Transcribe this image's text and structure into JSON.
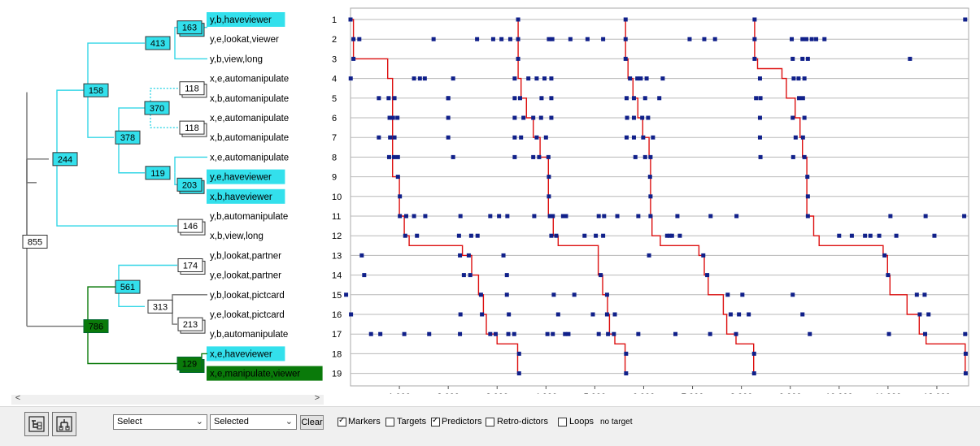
{
  "tree": {
    "leaves": [
      {
        "label": "y,b,haveviewer",
        "highlight": "cyan"
      },
      {
        "label": "y,e,lookat,viewer",
        "highlight": ""
      },
      {
        "label": "y,b,view,long",
        "highlight": ""
      },
      {
        "label": "x,e,automanipulate",
        "highlight": ""
      },
      {
        "label": "x,b,automanipulate",
        "highlight": ""
      },
      {
        "label": "x,e,automanipulate",
        "highlight": ""
      },
      {
        "label": "x,b,automanipulate",
        "highlight": ""
      },
      {
        "label": "x,e,automanipulate",
        "highlight": ""
      },
      {
        "label": "y,e,haveviewer",
        "highlight": "cyan"
      },
      {
        "label": "x,b,haveviewer",
        "highlight": "cyan"
      },
      {
        "label": "y,b,automanipulate",
        "highlight": ""
      },
      {
        "label": "x,b,view,long",
        "highlight": ""
      },
      {
        "label": "y,b,lookat,partner",
        "highlight": ""
      },
      {
        "label": "y,e,lookat,partner",
        "highlight": ""
      },
      {
        "label": "y,b,lookat,pictcard",
        "highlight": ""
      },
      {
        "label": "y,e,lookat,pictcard",
        "highlight": ""
      },
      {
        "label": "y,b,automanipulate",
        "highlight": ""
      },
      {
        "label": "x,e,haveviewer",
        "highlight": "cyan"
      },
      {
        "label": "x,e,manipulate,viewer",
        "highlight": "green"
      }
    ],
    "nodes": [
      {
        "id": "n163",
        "label": "163",
        "style": "cyan"
      },
      {
        "id": "n413",
        "label": "413",
        "style": "cyan"
      },
      {
        "id": "n158",
        "label": "158",
        "style": "cyan"
      },
      {
        "id": "n118a",
        "label": "118",
        "style": "white"
      },
      {
        "id": "n370",
        "label": "370",
        "style": "cyan"
      },
      {
        "id": "n118b",
        "label": "118",
        "style": "white"
      },
      {
        "id": "n378",
        "label": "378",
        "style": "cyan"
      },
      {
        "id": "n119",
        "label": "119",
        "style": "cyan"
      },
      {
        "id": "n203",
        "label": "203",
        "style": "cyan"
      },
      {
        "id": "n244",
        "label": "244",
        "style": "cyan"
      },
      {
        "id": "n146",
        "label": "146",
        "style": "white"
      },
      {
        "id": "n855",
        "label": "855",
        "style": "white"
      },
      {
        "id": "n174",
        "label": "174",
        "style": "white"
      },
      {
        "id": "n561",
        "label": "561",
        "style": "cyan"
      },
      {
        "id": "n313",
        "label": "313",
        "style": "white"
      },
      {
        "id": "n213",
        "label": "213",
        "style": "white"
      },
      {
        "id": "n786",
        "label": "786",
        "style": "green"
      },
      {
        "id": "n129",
        "label": "129",
        "style": "green"
      }
    ],
    "colors": {
      "cyan": "#33e0ec",
      "cyan_line": "#33d6e6",
      "green": "#0a7a0a",
      "gray_line": "#707070"
    }
  },
  "chart_data": {
    "type": "scatter",
    "rows": [
      "1",
      "2",
      "3",
      "4",
      "5",
      "6",
      "7",
      "8",
      "9",
      "10",
      "11",
      "12",
      "13",
      "14",
      "15",
      "16",
      "17",
      "18",
      "19"
    ],
    "xlim": [
      0,
      12650
    ],
    "x_ticks": [
      1000,
      2000,
      3000,
      4000,
      5000,
      6000,
      7000,
      8000,
      9000,
      10000,
      11000,
      12000
    ],
    "x_tick_labels": [
      "1,000",
      "2,000",
      "3,000",
      "4,000",
      "5,000",
      "6,000",
      "7,000",
      "8,000",
      "9,000",
      "10,000",
      "11,000",
      "12,000"
    ],
    "points": [
      [
        0,
        1
      ],
      [
        3430,
        1
      ],
      [
        5630,
        1
      ],
      [
        8270,
        1
      ],
      [
        12580,
        1
      ],
      [
        60,
        2
      ],
      [
        180,
        2
      ],
      [
        1700,
        2
      ],
      [
        2590,
        2
      ],
      [
        2920,
        2
      ],
      [
        3090,
        2
      ],
      [
        3270,
        2
      ],
      [
        3430,
        2
      ],
      [
        4060,
        2
      ],
      [
        4130,
        2
      ],
      [
        4500,
        2
      ],
      [
        4850,
        2
      ],
      [
        5170,
        2
      ],
      [
        5630,
        2
      ],
      [
        6940,
        2
      ],
      [
        7240,
        2
      ],
      [
        7460,
        2
      ],
      [
        8270,
        2
      ],
      [
        9030,
        2
      ],
      [
        9250,
        2
      ],
      [
        9330,
        2
      ],
      [
        9440,
        2
      ],
      [
        9530,
        2
      ],
      [
        9700,
        2
      ],
      [
        60,
        3
      ],
      [
        3430,
        3
      ],
      [
        5630,
        3
      ],
      [
        8270,
        3
      ],
      [
        9050,
        3
      ],
      [
        9250,
        3
      ],
      [
        9360,
        3
      ],
      [
        11450,
        3
      ],
      [
        4,
        4
      ],
      [
        1300,
        4
      ],
      [
        1420,
        4
      ],
      [
        1520,
        4
      ],
      [
        2100,
        4
      ],
      [
        3360,
        4
      ],
      [
        3640,
        4
      ],
      [
        3810,
        4
      ],
      [
        3970,
        4
      ],
      [
        4110,
        4
      ],
      [
        5720,
        4
      ],
      [
        5870,
        4
      ],
      [
        5940,
        4
      ],
      [
        6060,
        4
      ],
      [
        6390,
        4
      ],
      [
        8380,
        4
      ],
      [
        9070,
        4
      ],
      [
        9170,
        4
      ],
      [
        9290,
        4
      ],
      [
        580,
        5
      ],
      [
        780,
        5
      ],
      [
        900,
        5
      ],
      [
        2000,
        5
      ],
      [
        2000,
        5
      ],
      [
        3360,
        5
      ],
      [
        3470,
        5
      ],
      [
        3910,
        5
      ],
      [
        4110,
        5
      ],
      [
        5650,
        5
      ],
      [
        5800,
        5
      ],
      [
        6030,
        5
      ],
      [
        6320,
        5
      ],
      [
        8300,
        5
      ],
      [
        8390,
        5
      ],
      [
        9180,
        5
      ],
      [
        9260,
        5
      ],
      [
        800,
        6
      ],
      [
        870,
        6
      ],
      [
        960,
        6
      ],
      [
        2000,
        6
      ],
      [
        3360,
        6
      ],
      [
        3540,
        6
      ],
      [
        3740,
        6
      ],
      [
        3900,
        6
      ],
      [
        4110,
        6
      ],
      [
        5660,
        6
      ],
      [
        5800,
        6
      ],
      [
        5970,
        6
      ],
      [
        6090,
        6
      ],
      [
        8380,
        6
      ],
      [
        9050,
        6
      ],
      [
        9290,
        6
      ],
      [
        580,
        7
      ],
      [
        810,
        7
      ],
      [
        900,
        7
      ],
      [
        2000,
        7
      ],
      [
        3360,
        7
      ],
      [
        3490,
        7
      ],
      [
        3810,
        7
      ],
      [
        4000,
        7
      ],
      [
        5650,
        7
      ],
      [
        5800,
        7
      ],
      [
        5990,
        7
      ],
      [
        6190,
        7
      ],
      [
        8380,
        7
      ],
      [
        9110,
        7
      ],
      [
        9260,
        7
      ],
      [
        790,
        8
      ],
      [
        890,
        8
      ],
      [
        970,
        8
      ],
      [
        2100,
        8
      ],
      [
        3360,
        8
      ],
      [
        3740,
        8
      ],
      [
        3860,
        8
      ],
      [
        4050,
        8
      ],
      [
        5830,
        8
      ],
      [
        6030,
        8
      ],
      [
        6140,
        8
      ],
      [
        8390,
        8
      ],
      [
        9060,
        8
      ],
      [
        9290,
        8
      ],
      [
        970,
        9
      ],
      [
        4060,
        9
      ],
      [
        6130,
        9
      ],
      [
        9350,
        9
      ],
      [
        1010,
        10
      ],
      [
        4060,
        10
      ],
      [
        6140,
        10
      ],
      [
        9360,
        10
      ],
      [
        1010,
        11
      ],
      [
        1140,
        11
      ],
      [
        1300,
        11
      ],
      [
        1530,
        11
      ],
      [
        2250,
        11
      ],
      [
        2860,
        11
      ],
      [
        3040,
        11
      ],
      [
        3210,
        11
      ],
      [
        3760,
        11
      ],
      [
        4080,
        11
      ],
      [
        4140,
        11
      ],
      [
        4350,
        11
      ],
      [
        4410,
        11
      ],
      [
        5080,
        11
      ],
      [
        5190,
        11
      ],
      [
        5460,
        11
      ],
      [
        5890,
        11
      ],
      [
        6140,
        11
      ],
      [
        6690,
        11
      ],
      [
        7370,
        11
      ],
      [
        7900,
        11
      ],
      [
        9360,
        11
      ],
      [
        11050,
        11
      ],
      [
        11770,
        11
      ],
      [
        12560,
        11
      ],
      [
        1120,
        12
      ],
      [
        1360,
        12
      ],
      [
        2220,
        12
      ],
      [
        2470,
        12
      ],
      [
        2600,
        12
      ],
      [
        4110,
        12
      ],
      [
        4210,
        12
      ],
      [
        4790,
        12
      ],
      [
        5020,
        12
      ],
      [
        5170,
        12
      ],
      [
        6480,
        12
      ],
      [
        6530,
        12
      ],
      [
        6580,
        12
      ],
      [
        6740,
        12
      ],
      [
        10000,
        12
      ],
      [
        10260,
        12
      ],
      [
        10530,
        12
      ],
      [
        10640,
        12
      ],
      [
        10820,
        12
      ],
      [
        11170,
        12
      ],
      [
        11950,
        12
      ],
      [
        230,
        13
      ],
      [
        2240,
        13
      ],
      [
        2420,
        13
      ],
      [
        3130,
        13
      ],
      [
        6110,
        13
      ],
      [
        7220,
        13
      ],
      [
        10930,
        13
      ],
      [
        280,
        14
      ],
      [
        2320,
        14
      ],
      [
        2450,
        14
      ],
      [
        3200,
        14
      ],
      [
        5120,
        14
      ],
      [
        7300,
        14
      ],
      [
        11000,
        14
      ],
      [
        -90,
        15
      ],
      [
        2670,
        15
      ],
      [
        3200,
        15
      ],
      [
        4160,
        15
      ],
      [
        4580,
        15
      ],
      [
        5250,
        15
      ],
      [
        7720,
        15
      ],
      [
        8020,
        15
      ],
      [
        9050,
        15
      ],
      [
        11590,
        15
      ],
      [
        11750,
        15
      ],
      [
        10,
        16
      ],
      [
        2250,
        16
      ],
      [
        2690,
        16
      ],
      [
        3240,
        16
      ],
      [
        4250,
        16
      ],
      [
        4960,
        16
      ],
      [
        5250,
        16
      ],
      [
        5410,
        16
      ],
      [
        7780,
        16
      ],
      [
        7950,
        16
      ],
      [
        8150,
        16
      ],
      [
        9250,
        16
      ],
      [
        11650,
        16
      ],
      [
        11830,
        16
      ],
      [
        420,
        17
      ],
      [
        610,
        17
      ],
      [
        1100,
        17
      ],
      [
        1610,
        17
      ],
      [
        2240,
        17
      ],
      [
        2860,
        17
      ],
      [
        2970,
        17
      ],
      [
        3230,
        17
      ],
      [
        3350,
        17
      ],
      [
        4030,
        17
      ],
      [
        4140,
        17
      ],
      [
        4390,
        17
      ],
      [
        4460,
        17
      ],
      [
        5080,
        17
      ],
      [
        5270,
        17
      ],
      [
        5390,
        17
      ],
      [
        5890,
        17
      ],
      [
        6650,
        17
      ],
      [
        7360,
        17
      ],
      [
        7890,
        17
      ],
      [
        9400,
        17
      ],
      [
        11020,
        17
      ],
      [
        11760,
        17
      ],
      [
        12580,
        17
      ],
      [
        3450,
        18
      ],
      [
        5640,
        18
      ],
      [
        8260,
        18
      ],
      [
        12590,
        18
      ],
      [
        3450,
        19
      ],
      [
        5640,
        19
      ],
      [
        8260,
        19
      ],
      [
        12590,
        19
      ]
    ],
    "path": [
      [
        0,
        1
      ],
      [
        60,
        1
      ],
      [
        60,
        3
      ],
      [
        760,
        3
      ],
      [
        760,
        4
      ],
      [
        860,
        4
      ],
      [
        860,
        9
      ],
      [
        1000,
        9
      ],
      [
        1000,
        11
      ],
      [
        1100,
        11
      ],
      [
        1100,
        12
      ],
      [
        1200,
        12
      ],
      [
        1200,
        12.5
      ],
      [
        2290,
        12.5
      ],
      [
        2290,
        13
      ],
      [
        2480,
        13
      ],
      [
        2480,
        14
      ],
      [
        2620,
        14
      ],
      [
        2620,
        15
      ],
      [
        2720,
        15
      ],
      [
        2720,
        16
      ],
      [
        2780,
        16
      ],
      [
        2780,
        17
      ],
      [
        3000,
        17
      ],
      [
        3000,
        17.5
      ],
      [
        3420,
        17.5
      ],
      [
        3420,
        19
      ],
      [
        3430,
        1
      ],
      [
        3430,
        4
      ],
      [
        3490,
        4
      ],
      [
        3490,
        5
      ],
      [
        3600,
        5
      ],
      [
        3600,
        6
      ],
      [
        3740,
        6
      ],
      [
        3740,
        7
      ],
      [
        3880,
        7
      ],
      [
        3880,
        8
      ],
      [
        4050,
        8
      ],
      [
        4050,
        11
      ],
      [
        4150,
        11
      ],
      [
        4150,
        12
      ],
      [
        4250,
        12
      ],
      [
        4250,
        12.5
      ],
      [
        5070,
        12.5
      ],
      [
        5070,
        14
      ],
      [
        5160,
        14
      ],
      [
        5160,
        15
      ],
      [
        5260,
        15
      ],
      [
        5260,
        16
      ],
      [
        5300,
        16
      ],
      [
        5300,
        17
      ],
      [
        5410,
        17
      ],
      [
        5410,
        17.5
      ],
      [
        5620,
        17.5
      ],
      [
        5620,
        19
      ],
      [
        5630,
        1
      ],
      [
        5630,
        3
      ],
      [
        5680,
        3
      ],
      [
        5680,
        4
      ],
      [
        5780,
        4
      ],
      [
        5780,
        5
      ],
      [
        5880,
        5
      ],
      [
        5880,
        6
      ],
      [
        5980,
        6
      ],
      [
        5980,
        7
      ],
      [
        6110,
        7
      ],
      [
        6110,
        8
      ],
      [
        6140,
        8
      ],
      [
        6140,
        11
      ],
      [
        6170,
        11
      ],
      [
        6170,
        12
      ],
      [
        6340,
        12
      ],
      [
        6340,
        12.5
      ],
      [
        7130,
        12.5
      ],
      [
        7130,
        13
      ],
      [
        7240,
        13
      ],
      [
        7240,
        14
      ],
      [
        7320,
        14
      ],
      [
        7320,
        15
      ],
      [
        7630,
        15
      ],
      [
        7630,
        16
      ],
      [
        7700,
        16
      ],
      [
        7700,
        17
      ],
      [
        7890,
        17
      ],
      [
        7890,
        17.5
      ],
      [
        8250,
        17.5
      ],
      [
        8250,
        19
      ],
      [
        8270,
        1
      ],
      [
        8270,
        3
      ],
      [
        8330,
        3
      ],
      [
        8330,
        3.5
      ],
      [
        8830,
        3.5
      ],
      [
        8830,
        4
      ],
      [
        8920,
        4
      ],
      [
        8920,
        5
      ],
      [
        9100,
        5
      ],
      [
        9100,
        6
      ],
      [
        9200,
        6
      ],
      [
        9200,
        7
      ],
      [
        9250,
        7
      ],
      [
        9250,
        8
      ],
      [
        9340,
        8
      ],
      [
        9340,
        11
      ],
      [
        9480,
        11
      ],
      [
        9480,
        12
      ],
      [
        9590,
        12
      ],
      [
        9590,
        12.5
      ],
      [
        10900,
        12.5
      ],
      [
        10900,
        13
      ],
      [
        10990,
        13
      ],
      [
        10990,
        14
      ],
      [
        11040,
        14
      ],
      [
        11040,
        15
      ],
      [
        11390,
        15
      ],
      [
        11390,
        16
      ],
      [
        11640,
        16
      ],
      [
        11640,
        17
      ],
      [
        11780,
        17
      ],
      [
        11780,
        17.5
      ],
      [
        12580,
        17.5
      ],
      [
        12580,
        19
      ]
    ],
    "marker_color": "#10208a",
    "path_color": "#dd1010",
    "grid": true
  },
  "toolbar": {
    "select1": "Select",
    "select2": "Selected",
    "clear": "Clear",
    "checks": [
      {
        "label": "Markers",
        "checked": true
      },
      {
        "label": "Targets",
        "checked": false
      },
      {
        "label": "Predictors",
        "checked": true
      },
      {
        "label": "Retro-dictors",
        "checked": false
      },
      {
        "label": "Loops",
        "checked": false
      }
    ],
    "status": "no target"
  },
  "scroll": {
    "left_arrow": "<",
    "right_arrow": ">"
  }
}
